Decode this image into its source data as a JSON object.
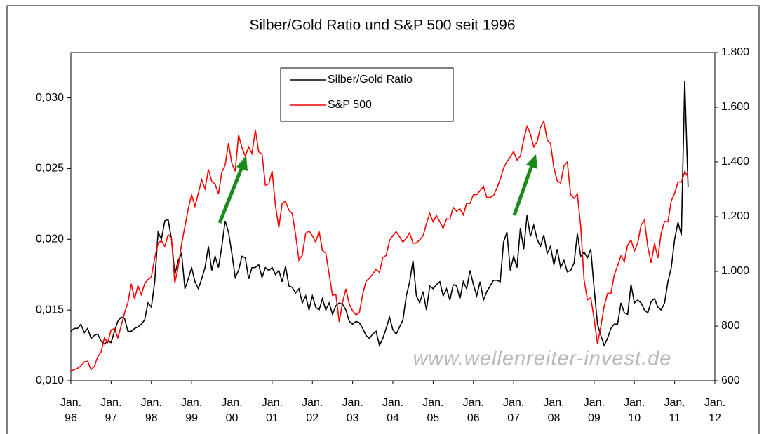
{
  "chart_data": {
    "type": "line",
    "title": "Silber/Gold Ratio und S&P 500 seit 1996",
    "watermark": "www.wellenreiter-invest.de",
    "x": [
      "1996-01",
      "1996-02",
      "1996-03",
      "1996-04",
      "1996-05",
      "1996-06",
      "1996-07",
      "1996-08",
      "1996-09",
      "1996-10",
      "1996-11",
      "1996-12",
      "1997-01",
      "1997-02",
      "1997-03",
      "1997-04",
      "1997-05",
      "1997-06",
      "1997-07",
      "1997-08",
      "1997-09",
      "1997-10",
      "1997-11",
      "1997-12",
      "1998-01",
      "1998-02",
      "1998-03",
      "1998-04",
      "1998-05",
      "1998-06",
      "1998-07",
      "1998-08",
      "1998-09",
      "1998-10",
      "1998-11",
      "1998-12",
      "1999-01",
      "1999-02",
      "1999-03",
      "1999-04",
      "1999-05",
      "1999-06",
      "1999-07",
      "1999-08",
      "1999-09",
      "1999-10",
      "1999-11",
      "1999-12",
      "2000-01",
      "2000-02",
      "2000-03",
      "2000-04",
      "2000-05",
      "2000-06",
      "2000-07",
      "2000-08",
      "2000-09",
      "2000-10",
      "2000-11",
      "2000-12",
      "2001-01",
      "2001-02",
      "2001-03",
      "2001-04",
      "2001-05",
      "2001-06",
      "2001-07",
      "2001-08",
      "2001-09",
      "2001-10",
      "2001-11",
      "2001-12",
      "2002-01",
      "2002-02",
      "2002-03",
      "2002-04",
      "2002-05",
      "2002-06",
      "2002-07",
      "2002-08",
      "2002-09",
      "2002-10",
      "2002-11",
      "2002-12",
      "2003-01",
      "2003-02",
      "2003-03",
      "2003-04",
      "2003-05",
      "2003-06",
      "2003-07",
      "2003-08",
      "2003-09",
      "2003-10",
      "2003-11",
      "2003-12",
      "2004-01",
      "2004-02",
      "2004-03",
      "2004-04",
      "2004-05",
      "2004-06",
      "2004-07",
      "2004-08",
      "2004-09",
      "2004-10",
      "2004-11",
      "2004-12",
      "2005-01",
      "2005-02",
      "2005-03",
      "2005-04",
      "2005-05",
      "2005-06",
      "2005-07",
      "2005-08",
      "2005-09",
      "2005-10",
      "2005-11",
      "2005-12",
      "2006-01",
      "2006-02",
      "2006-03",
      "2006-04",
      "2006-05",
      "2006-06",
      "2006-07",
      "2006-08",
      "2006-09",
      "2006-10",
      "2006-11",
      "2006-12",
      "2007-01",
      "2007-02",
      "2007-03",
      "2007-04",
      "2007-05",
      "2007-06",
      "2007-07",
      "2007-08",
      "2007-09",
      "2007-10",
      "2007-11",
      "2007-12",
      "2008-01",
      "2008-02",
      "2008-03",
      "2008-04",
      "2008-05",
      "2008-06",
      "2008-07",
      "2008-08",
      "2008-09",
      "2008-10",
      "2008-11",
      "2008-12",
      "2009-01",
      "2009-02",
      "2009-03",
      "2009-04",
      "2009-05",
      "2009-06",
      "2009-07",
      "2009-08",
      "2009-09",
      "2009-10",
      "2009-11",
      "2009-12",
      "2010-01",
      "2010-02",
      "2010-03",
      "2010-04",
      "2010-05",
      "2010-06",
      "2010-07",
      "2010-08",
      "2010-09",
      "2010-10",
      "2010-11",
      "2010-12",
      "2011-01",
      "2011-02",
      "2011-03",
      "2011-04",
      "2011-05"
    ],
    "series": [
      {
        "name": "Silber/Gold Ratio",
        "color": "#000000",
        "axis": "y",
        "values": [
          0.0135,
          0.0137,
          0.0137,
          0.014,
          0.0134,
          0.0137,
          0.013,
          0.0132,
          0.0133,
          0.0128,
          0.0126,
          0.0128,
          0.0127,
          0.0135,
          0.0142,
          0.0145,
          0.0144,
          0.0135,
          0.0135,
          0.0137,
          0.0138,
          0.014,
          0.0143,
          0.0155,
          0.0152,
          0.017,
          0.0205,
          0.02,
          0.0213,
          0.0214,
          0.02,
          0.0175,
          0.0185,
          0.019,
          0.0165,
          0.0172,
          0.018,
          0.017,
          0.0165,
          0.0172,
          0.018,
          0.0195,
          0.0178,
          0.0188,
          0.018,
          0.0195,
          0.0213,
          0.0205,
          0.019,
          0.0173,
          0.0178,
          0.0188,
          0.0187,
          0.0172,
          0.018,
          0.018,
          0.0182,
          0.0173,
          0.018,
          0.0178,
          0.018,
          0.0175,
          0.0178,
          0.017,
          0.0181,
          0.0167,
          0.0166,
          0.0162,
          0.0165,
          0.0155,
          0.016,
          0.015,
          0.016,
          0.0152,
          0.015,
          0.0158,
          0.015,
          0.0155,
          0.0147,
          0.0153,
          0.0155,
          0.0154,
          0.015,
          0.0142,
          0.014,
          0.0142,
          0.0141,
          0.0137,
          0.0132,
          0.013,
          0.0133,
          0.0135,
          0.0125,
          0.013,
          0.0137,
          0.0145,
          0.0136,
          0.0133,
          0.0138,
          0.0143,
          0.016,
          0.017,
          0.0185,
          0.016,
          0.0155,
          0.0163,
          0.015,
          0.0167,
          0.0165,
          0.0168,
          0.017,
          0.016,
          0.0165,
          0.0157,
          0.0168,
          0.0167,
          0.0158,
          0.017,
          0.0165,
          0.0178,
          0.0168,
          0.016,
          0.017,
          0.0157,
          0.0163,
          0.0167,
          0.0171,
          0.0171,
          0.017,
          0.0198,
          0.0205,
          0.0178,
          0.0188,
          0.018,
          0.0208,
          0.0193,
          0.0217,
          0.0202,
          0.021,
          0.02,
          0.0195,
          0.0203,
          0.019,
          0.0195,
          0.0182,
          0.0193,
          0.018,
          0.0185,
          0.0177,
          0.0178,
          0.0183,
          0.0204,
          0.0188,
          0.0191,
          0.0187,
          0.0193,
          0.0165,
          0.014,
          0.0132,
          0.0125,
          0.013,
          0.0137,
          0.014,
          0.014,
          0.0155,
          0.0148,
          0.0147,
          0.0168,
          0.0155,
          0.0157,
          0.0155,
          0.015,
          0.0148,
          0.0156,
          0.0158,
          0.0152,
          0.015,
          0.0155,
          0.017,
          0.018,
          0.02,
          0.0212,
          0.0203,
          0.0312,
          0.0237
        ]
      },
      {
        "name": "S&P 500",
        "color": "#ff0000",
        "axis": "y2",
        "values": [
          636,
          640,
          645,
          654,
          669,
          671,
          640,
          652,
          687,
          705,
          757,
          740,
          786,
          791,
          757,
          801,
          848,
          885,
          954,
          899,
          947,
          915,
          955,
          970,
          980,
          1049,
          1102,
          1112,
          1091,
          1134,
          1121,
          957,
          1017,
          1099,
          1164,
          1229,
          1280,
          1238,
          1286,
          1335,
          1302,
          1373,
          1329,
          1320,
          1283,
          1362,
          1389,
          1469,
          1394,
          1366,
          1499,
          1452,
          1421,
          1455,
          1431,
          1518,
          1437,
          1429,
          1315,
          1320,
          1366,
          1240,
          1160,
          1249,
          1256,
          1224,
          1211,
          1134,
          1041,
          1060,
          1139,
          1148,
          1130,
          1107,
          1147,
          1076,
          1067,
          990,
          912,
          916,
          815,
          886,
          936,
          880,
          856,
          841,
          848,
          916,
          964,
          975,
          990,
          1008,
          996,
          1051,
          1058,
          1112,
          1131,
          1145,
          1126,
          1107,
          1121,
          1141,
          1102,
          1104,
          1115,
          1130,
          1174,
          1212,
          1181,
          1204,
          1181,
          1157,
          1192,
          1191,
          1234,
          1220,
          1229,
          1207,
          1249,
          1248,
          1280,
          1281,
          1295,
          1311,
          1270,
          1270,
          1277,
          1304,
          1336,
          1378,
          1401,
          1418,
          1438,
          1407,
          1421,
          1482,
          1531,
          1503,
          1455,
          1474,
          1527,
          1549,
          1481,
          1468,
          1379,
          1331,
          1323,
          1386,
          1400,
          1280,
          1267,
          1283,
          1165,
          969,
          896,
          903,
          826,
          735,
          798,
          873,
          919,
          919,
          987,
          1021,
          1057,
          1036,
          1096,
          1115,
          1074,
          1104,
          1169,
          1187,
          1089,
          1031,
          1102,
          1049,
          1141,
          1183,
          1181,
          1258,
          1286,
          1327,
          1326,
          1364,
          1345
        ]
      }
    ],
    "xlim": [
      "1996-01",
      "2012-01"
    ],
    "xticks": [
      {
        "value": "1996-01",
        "label": "Jan. 96"
      },
      {
        "value": "1997-01",
        "label": "Jan. 97"
      },
      {
        "value": "1998-01",
        "label": "Jan. 98"
      },
      {
        "value": "1999-01",
        "label": "Jan. 99"
      },
      {
        "value": "2000-01",
        "label": "Jan. 00"
      },
      {
        "value": "2001-01",
        "label": "Jan. 01"
      },
      {
        "value": "2002-01",
        "label": "Jan. 02"
      },
      {
        "value": "2003-01",
        "label": "Jan. 03"
      },
      {
        "value": "2004-01",
        "label": "Jan. 04"
      },
      {
        "value": "2005-01",
        "label": "Jan. 05"
      },
      {
        "value": "2006-01",
        "label": "Jan. 06"
      },
      {
        "value": "2007-01",
        "label": "Jan. 07"
      },
      {
        "value": "2008-01",
        "label": "Jan. 08"
      },
      {
        "value": "2009-01",
        "label": "Jan. 09"
      },
      {
        "value": "2010-01",
        "label": "Jan. 10"
      },
      {
        "value": "2011-01",
        "label": "Jan. 11"
      },
      {
        "value": "2012-01",
        "label": "Jan. 12"
      }
    ],
    "ylim": [
      0.01,
      0.0332
    ],
    "yticks": [
      {
        "value": 0.01,
        "label": "0,010"
      },
      {
        "value": 0.015,
        "label": "0,015"
      },
      {
        "value": 0.02,
        "label": "0,020"
      },
      {
        "value": 0.025,
        "label": "0,025"
      },
      {
        "value": 0.03,
        "label": "0,030"
      }
    ],
    "y2lim": [
      600,
      1800
    ],
    "y2ticks": [
      600,
      800,
      {
        "value": 1000,
        "label": "1.000"
      },
      {
        "value": 1200,
        "label": "1.200"
      },
      {
        "value": 1400,
        "label": "1.400"
      },
      {
        "value": 1600,
        "label": "1.600"
      },
      {
        "value": 1800,
        "label": "1.800"
      }
    ],
    "grid": false,
    "legend": "top-center"
  }
}
